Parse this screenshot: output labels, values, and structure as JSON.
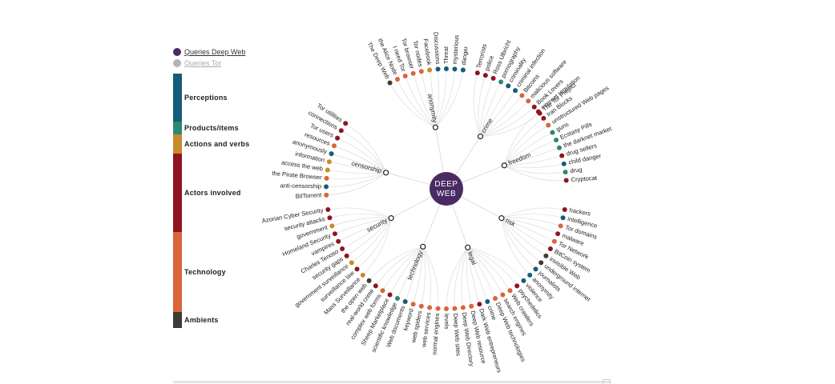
{
  "legend": [
    {
      "label": "Queries Deep Web",
      "color": "#4a2a63"
    },
    {
      "label": "Queries Tor",
      "color": "#b5b5b5"
    }
  ],
  "categories": [
    {
      "label": "Perceptions",
      "color": "#145c7a"
    },
    {
      "label": "Products/items",
      "color": "#2c8872"
    },
    {
      "label": "Actions and verbs",
      "color": "#c98a2b"
    },
    {
      "label": "Actors involved",
      "color": "#8e1520"
    },
    {
      "label": "Technology",
      "color": "#d9653a"
    },
    {
      "label": "Ambients",
      "color": "#3f3a33"
    }
  ],
  "center": {
    "line1": "DEEP",
    "line2": "WEB",
    "color": "#4a2a63"
  },
  "groups": [
    {
      "name": "anonymity",
      "leaves": [
        {
          "label": "The Deep Web",
          "cat": 5
        },
        {
          "label": "the Alice Node",
          "cat": 4
        },
        {
          "label": "I need Tor",
          "cat": 4
        },
        {
          "label": "Tor browser",
          "cat": 4
        },
        {
          "label": "Tor nodes",
          "cat": 4
        },
        {
          "label": "Facebook",
          "cat": 2
        },
        {
          "label": "Discussions",
          "cat": 0
        },
        {
          "label": "Threat",
          "cat": 0
        },
        {
          "label": "mysterious",
          "cat": 0
        },
        {
          "label": "danger",
          "cat": 0
        }
      ]
    },
    {
      "name": "crime",
      "leaves": [
        {
          "label": "Terrorists",
          "cat": 3
        },
        {
          "label": "police",
          "cat": 3
        },
        {
          "label": "Ross Ulbricht",
          "cat": 3
        },
        {
          "label": "pornography",
          "cat": 1
        },
        {
          "label": "criminality",
          "cat": 0
        },
        {
          "label": "criminal infection",
          "cat": 0
        },
        {
          "label": "Bitcoins",
          "cat": 4
        },
        {
          "label": "malicious software",
          "cat": 4
        },
        {
          "label": "Book Lovers",
          "cat": 3
        },
        {
          "label": "The Tor Project",
          "cat": 3
        }
      ]
    },
    {
      "name": "freedom",
      "leaves": [
        {
          "label": "internet regulation",
          "cat": 3
        },
        {
          "label": "Iran Blocks",
          "cat": 3
        },
        {
          "label": "unstructured Web pages",
          "cat": 4
        },
        {
          "label": "guns",
          "cat": 1
        },
        {
          "label": "Ecstasy Pills",
          "cat": 1
        },
        {
          "label": "the darknet market",
          "cat": 1
        },
        {
          "label": "drug sellers",
          "cat": 3
        },
        {
          "label": "child danger",
          "cat": 0
        },
        {
          "label": "drug",
          "cat": 1
        },
        {
          "label": "Cryptocat",
          "cat": 3
        }
      ]
    },
    {
      "name": "risk",
      "leaves": [
        {
          "label": "hackers",
          "cat": 3
        },
        {
          "label": "intelligence",
          "cat": 0
        },
        {
          "label": "Tor domains",
          "cat": 4
        },
        {
          "label": "malware",
          "cat": 3
        },
        {
          "label": "Tor Network",
          "cat": 4
        },
        {
          "label": "BitCoin system",
          "cat": 3
        },
        {
          "label": "invisible Web",
          "cat": 5
        },
        {
          "label": "underground internet",
          "cat": 5
        },
        {
          "label": "journalists",
          "cat": 0
        },
        {
          "label": "anonymity",
          "cat": 0
        }
      ]
    },
    {
      "name": "legal",
      "leaves": [
        {
          "label": "violence",
          "cat": 0
        },
        {
          "label": "psychedelics",
          "cat": 3
        },
        {
          "label": "Web crawlers",
          "cat": 4
        },
        {
          "label": "search engines",
          "cat": 4
        },
        {
          "label": "Deep Web technologies",
          "cat": 4
        },
        {
          "label": "crime",
          "cat": 0
        },
        {
          "label": "Dark Web entrepreneurs",
          "cat": 3
        },
        {
          "label": "Deep Web resource",
          "cat": 4
        },
        {
          "label": "Deep Web Directory",
          "cat": 4
        },
        {
          "label": "Deep Web sites",
          "cat": 4
        },
        {
          "label": "levels",
          "cat": 4
        }
      ]
    },
    {
      "name": "technology",
      "leaves": [
        {
          "label": "normal engines",
          "cat": 4
        },
        {
          "label": "web services",
          "cat": 4
        },
        {
          "label": "web spiders",
          "cat": 4
        },
        {
          "label": "keyword",
          "cat": 4
        },
        {
          "label": "Web documents",
          "cat": 0
        },
        {
          "label": "scientific knowledge",
          "cat": 1
        },
        {
          "label": "Sheep Marketplace",
          "cat": 3
        },
        {
          "label": "complex web forms",
          "cat": 4
        },
        {
          "label": "real-world crime",
          "cat": 3
        },
        {
          "label": "the open web",
          "cat": 5
        }
      ]
    },
    {
      "name": "security",
      "leaves": [
        {
          "label": "Mass Surveillance",
          "cat": 2
        },
        {
          "label": "surveillance law",
          "cat": 3
        },
        {
          "label": "government surveillance",
          "cat": 2
        },
        {
          "label": "security gaps",
          "cat": 3
        },
        {
          "label": "Charles Tenoso",
          "cat": 3
        },
        {
          "label": "vampires",
          "cat": 3
        },
        {
          "label": "Homeland Security",
          "cat": 3
        },
        {
          "label": "government",
          "cat": 2
        },
        {
          "label": "security attacks",
          "cat": 3
        },
        {
          "label": "Azorian Cyber Security",
          "cat": 3
        }
      ]
    },
    {
      "name": "censorship",
      "leaves": [
        {
          "label": "BitTorrent",
          "cat": 4
        },
        {
          "label": "anti-censorship",
          "cat": 0
        },
        {
          "label": "the Pirate Browser",
          "cat": 4
        },
        {
          "label": "access the web",
          "cat": 2
        },
        {
          "label": "information",
          "cat": 2
        },
        {
          "label": "anonymously",
          "cat": 0
        },
        {
          "label": "resources",
          "cat": 4
        },
        {
          "label": "Tor users",
          "cat": 3
        },
        {
          "label": "connections",
          "cat": 3
        },
        {
          "label": "Tor utilities",
          "cat": 3
        }
      ]
    }
  ]
}
